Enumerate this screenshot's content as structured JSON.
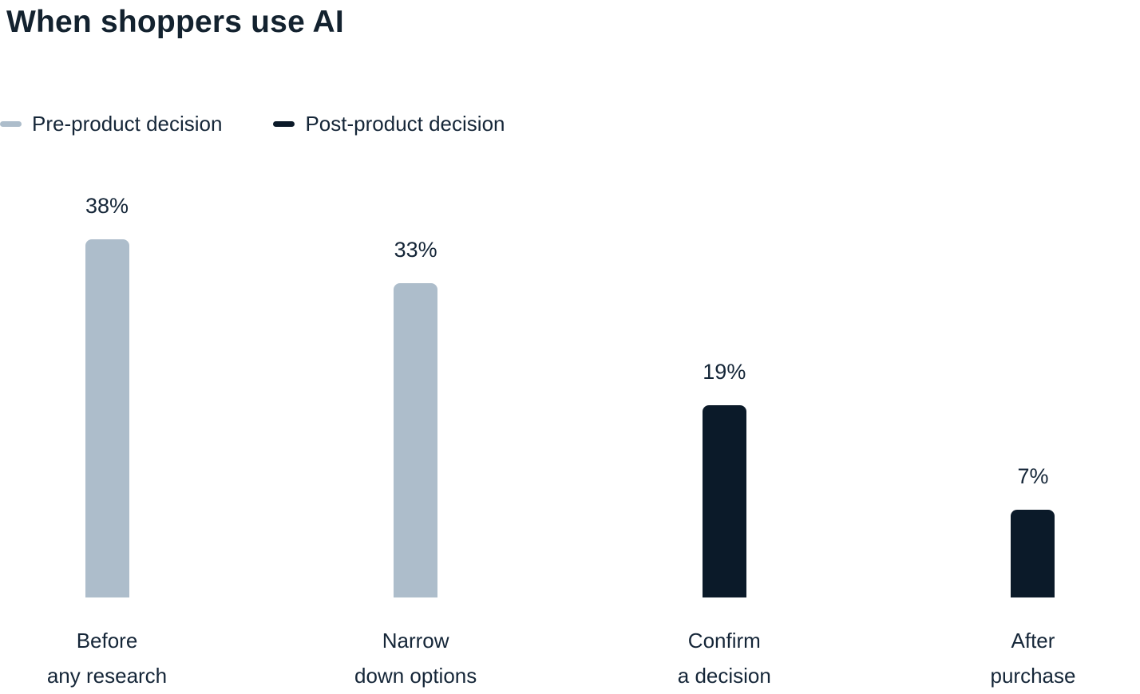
{
  "title": "When shoppers use AI",
  "colors": {
    "background": "#FFFFFF",
    "text": "#152638",
    "pre": "#ADBDCB",
    "post": "#0B1A29"
  },
  "legend": {
    "items": [
      {
        "label": "Pre-product decision",
        "series_key": "pre"
      },
      {
        "label": "Post-product decision",
        "series_key": "post"
      }
    ]
  },
  "chart_data": {
    "type": "bar",
    "title": "When shoppers use AI",
    "categories": [
      "Before any research",
      "Narrow down options",
      "Confirm a decision",
      "After purchase"
    ],
    "values": [
      38,
      33,
      19,
      7
    ],
    "unit": "%",
    "xlabel": "",
    "ylabel": "",
    "ylim": [
      0,
      40
    ],
    "grid": false,
    "axes_shown": false,
    "data_labels": true,
    "legend_position": "top-left",
    "series": [
      {
        "name": "Pre-product decision",
        "color": "#ADBDCB",
        "values": [
          38,
          33,
          null,
          null
        ]
      },
      {
        "name": "Post-product decision",
        "color": "#0B1A29",
        "values": [
          null,
          null,
          19,
          7
        ]
      }
    ],
    "bars": [
      {
        "value": 38,
        "label": "38%",
        "series_key": "pre",
        "category_lines": [
          "Before",
          "any research"
        ]
      },
      {
        "value": 33,
        "label": "33%",
        "series_key": "pre",
        "category_lines": [
          "Narrow",
          "down options"
        ]
      },
      {
        "value": 19,
        "label": "19%",
        "series_key": "post",
        "category_lines": [
          "Confirm",
          "a decision"
        ]
      },
      {
        "value": 7,
        "label": "7%",
        "series_key": "post",
        "category_lines": [
          "After",
          "purchase"
        ]
      }
    ]
  }
}
